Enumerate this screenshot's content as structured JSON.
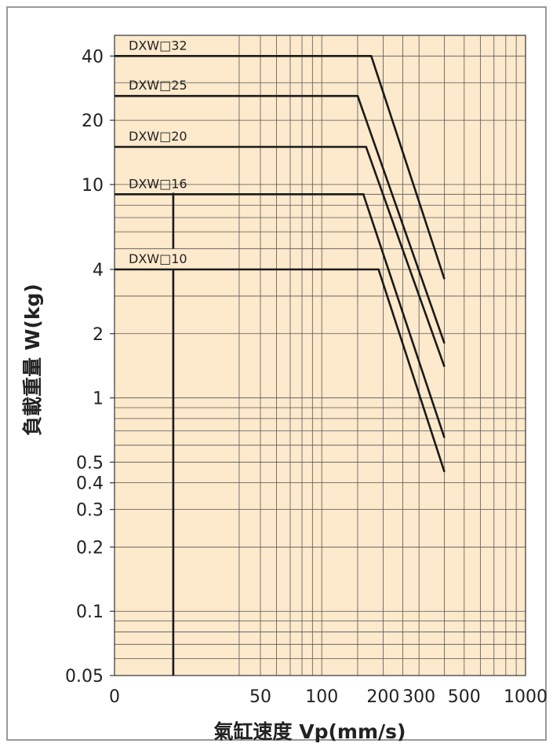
{
  "chart_data": {
    "type": "line",
    "title": "",
    "xlabel": "氣缸速度  Vp(mm/s)",
    "ylabel": "負載重量  W(kg)",
    "xscale": "log",
    "yscale": "log",
    "xlim": [
      0,
      1000
    ],
    "ylim": [
      0.05,
      50
    ],
    "grid": true,
    "background_color": "#fde9cc",
    "line_color": "#1a1a1a",
    "grid_color": "#555555",
    "x_ticks": [
      {
        "value": 0,
        "label": "0"
      },
      {
        "value": 50,
        "label": "50"
      },
      {
        "value": 100,
        "label": "100"
      },
      {
        "value": 200,
        "label": "200"
      },
      {
        "value": 300,
        "label": "300"
      },
      {
        "value": 500,
        "label": "500"
      },
      {
        "value": 1000,
        "label": "1000"
      }
    ],
    "y_ticks": [
      {
        "value": 40,
        "label": "40"
      },
      {
        "value": 20,
        "label": "20"
      },
      {
        "value": 10,
        "label": "10"
      },
      {
        "value": 4,
        "label": "4"
      },
      {
        "value": 2,
        "label": "2"
      },
      {
        "value": 1,
        "label": "1"
      },
      {
        "value": 0.5,
        "label": "0.5"
      },
      {
        "value": 0.4,
        "label": "0.4"
      },
      {
        "value": 0.3,
        "label": "0.3"
      },
      {
        "value": 0.2,
        "label": "0.2"
      },
      {
        "value": 0.1,
        "label": "0.1"
      },
      {
        "value": 0.05,
        "label": "0.05"
      }
    ],
    "min_speed": 20,
    "series": [
      {
        "name": "DXW□32",
        "x": [
          20,
          175,
          400
        ],
        "y": [
          40,
          40,
          3.6
        ]
      },
      {
        "name": "DXW□25",
        "x": [
          20,
          150,
          400
        ],
        "y": [
          26,
          26,
          1.8
        ]
      },
      {
        "name": "DXW□20",
        "x": [
          20,
          165,
          400
        ],
        "y": [
          15,
          15,
          1.4
        ]
      },
      {
        "name": "DXW□16",
        "x": [
          20,
          160,
          400
        ],
        "y": [
          9,
          9,
          0.65
        ]
      },
      {
        "name": "DXW□10",
        "x": [
          20,
          190,
          400
        ],
        "y": [
          4,
          4,
          0.45
        ]
      }
    ]
  }
}
